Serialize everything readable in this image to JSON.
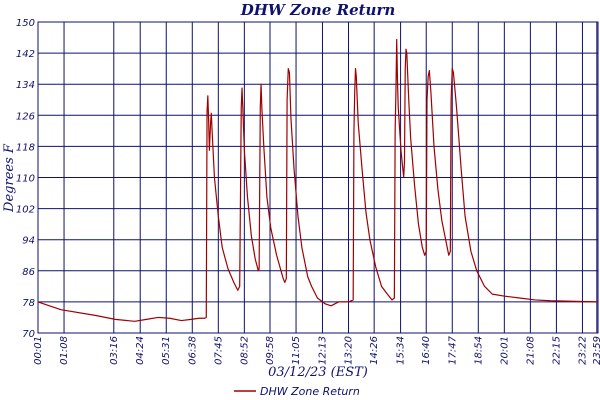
{
  "chart_data": {
    "type": "line",
    "title": "DHW Zone Return",
    "xlabel": "03/12/23 (EST)",
    "ylabel": "Degrees F",
    "ylim": [
      70,
      150
    ],
    "yticks": [
      70,
      78,
      86,
      94,
      102,
      110,
      118,
      126,
      134,
      142,
      150
    ],
    "xlim": [
      1,
      1442
    ],
    "xticks": [
      {
        "label": "00:01",
        "x": 1
      },
      {
        "label": "01:08",
        "x": 68
      },
      {
        "label": "03:16",
        "x": 196
      },
      {
        "label": "04:24",
        "x": 264
      },
      {
        "label": "05:31",
        "x": 331
      },
      {
        "label": "06:38",
        "x": 398
      },
      {
        "label": "07:45",
        "x": 465
      },
      {
        "label": "08:52",
        "x": 532
      },
      {
        "label": "09:58",
        "x": 598
      },
      {
        "label": "11:05",
        "x": 665
      },
      {
        "label": "12:13",
        "x": 733
      },
      {
        "label": "13:20",
        "x": 800
      },
      {
        "label": "14:26",
        "x": 866
      },
      {
        "label": "15:34",
        "x": 934
      },
      {
        "label": "16:40",
        "x": 1000
      },
      {
        "label": "17:47",
        "x": 1067
      },
      {
        "label": "18:54",
        "x": 1134
      },
      {
        "label": "20:01",
        "x": 1201
      },
      {
        "label": "21:08",
        "x": 1268
      },
      {
        "label": "22:15",
        "x": 1335
      },
      {
        "label": "23:22",
        "x": 1402
      },
      {
        "label": "23:59",
        "x": 1439
      }
    ],
    "grid": true,
    "legend": "bottom-center",
    "series": [
      {
        "name": "DHW Zone Return",
        "color": "#a00000",
        "points": [
          [
            1,
            78
          ],
          [
            60,
            76
          ],
          [
            150,
            74.5
          ],
          [
            200,
            73.5
          ],
          [
            250,
            73
          ],
          [
            280,
            73.5
          ],
          [
            310,
            74
          ],
          [
            340,
            73.8
          ],
          [
            370,
            73.2
          ],
          [
            395,
            73.5
          ],
          [
            415,
            73.8
          ],
          [
            430,
            73.8
          ],
          [
            434,
            74
          ],
          [
            436,
            127
          ],
          [
            438,
            131
          ],
          [
            440,
            125
          ],
          [
            442,
            117
          ],
          [
            445,
            124
          ],
          [
            447,
            126.5
          ],
          [
            449,
            122
          ],
          [
            455,
            110
          ],
          [
            465,
            100
          ],
          [
            475,
            92
          ],
          [
            490,
            86.5
          ],
          [
            505,
            83
          ],
          [
            515,
            81
          ],
          [
            520,
            82
          ],
          [
            524,
            128
          ],
          [
            526,
            133
          ],
          [
            528,
            128
          ],
          [
            532,
            117
          ],
          [
            540,
            105
          ],
          [
            550,
            95
          ],
          [
            560,
            89
          ],
          [
            568,
            86
          ],
          [
            570,
            86.5
          ],
          [
            573,
            128
          ],
          [
            575,
            134
          ],
          [
            577,
            128
          ],
          [
            582,
            118
          ],
          [
            590,
            105
          ],
          [
            600,
            97
          ],
          [
            615,
            90
          ],
          [
            632,
            84
          ],
          [
            636,
            83
          ],
          [
            640,
            84
          ],
          [
            642,
            130
          ],
          [
            645,
            138
          ],
          [
            648,
            137
          ],
          [
            652,
            125
          ],
          [
            660,
            112
          ],
          [
            670,
            100
          ],
          [
            680,
            92
          ],
          [
            695,
            84.5
          ],
          [
            705,
            82
          ],
          [
            720,
            79
          ],
          [
            740,
            77.5
          ],
          [
            755,
            77
          ],
          [
            765,
            77.5
          ],
          [
            775,
            78
          ],
          [
            790,
            78
          ],
          [
            800,
            78
          ],
          [
            812,
            78.5
          ],
          [
            814,
            122
          ],
          [
            816,
            132
          ],
          [
            818,
            138
          ],
          [
            820,
            136
          ],
          [
            825,
            124
          ],
          [
            835,
            112
          ],
          [
            845,
            101
          ],
          [
            855,
            94
          ],
          [
            870,
            87
          ],
          [
            885,
            82
          ],
          [
            900,
            80
          ],
          [
            912,
            78.5
          ],
          [
            918,
            79
          ],
          [
            920,
            122
          ],
          [
            922,
            132
          ],
          [
            924,
            145.5
          ],
          [
            926,
            135
          ],
          [
            928,
            128
          ],
          [
            935,
            117
          ],
          [
            940,
            112
          ],
          [
            942,
            110
          ],
          [
            944,
            114
          ],
          [
            946,
            138
          ],
          [
            948,
            143
          ],
          [
            950,
            142
          ],
          [
            955,
            130
          ],
          [
            960,
            120
          ],
          [
            970,
            108
          ],
          [
            980,
            98
          ],
          [
            990,
            92
          ],
          [
            996,
            90
          ],
          [
            1000,
            91
          ],
          [
            1002,
            130
          ],
          [
            1005,
            136
          ],
          [
            1008,
            137.5
          ],
          [
            1012,
            132
          ],
          [
            1020,
            118
          ],
          [
            1030,
            107
          ],
          [
            1040,
            99
          ],
          [
            1050,
            94
          ],
          [
            1058,
            90
          ],
          [
            1062,
            91
          ],
          [
            1064,
            130
          ],
          [
            1067,
            138
          ],
          [
            1070,
            137
          ],
          [
            1078,
            128
          ],
          [
            1090,
            112
          ],
          [
            1100,
            100
          ],
          [
            1115,
            91
          ],
          [
            1130,
            86
          ],
          [
            1150,
            82
          ],
          [
            1170,
            80
          ],
          [
            1200,
            79.5
          ],
          [
            1240,
            79
          ],
          [
            1280,
            78.5
          ],
          [
            1320,
            78.3
          ],
          [
            1360,
            78.2
          ],
          [
            1400,
            78.1
          ],
          [
            1442,
            78
          ]
        ]
      }
    ]
  }
}
